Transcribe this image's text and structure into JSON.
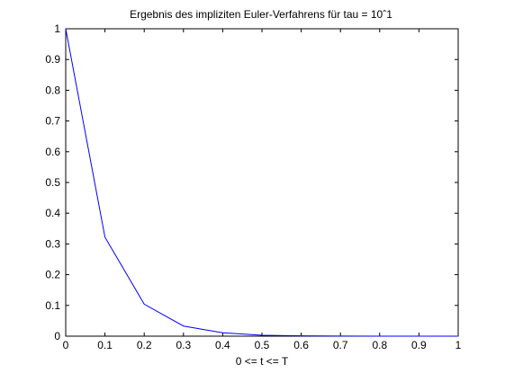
{
  "chart_data": {
    "type": "line",
    "title": "Ergebnis des impliziten Euler-Verfahrens für tau = 10ˆ1",
    "xlabel": "0 <= t <= T",
    "ylabel": "",
    "xlim": [
      0,
      1
    ],
    "ylim": [
      0,
      1
    ],
    "grid": false,
    "x_ticks": [
      "0",
      "0.1",
      "0.2",
      "0.3",
      "0.4",
      "0.5",
      "0.6",
      "0.7",
      "0.8",
      "0.9",
      "1"
    ],
    "y_ticks": [
      "0",
      "0.1",
      "0.2",
      "0.3",
      "0.4",
      "0.5",
      "0.6",
      "0.7",
      "0.8",
      "0.9",
      "1"
    ],
    "series": [
      {
        "color": "#0000ff",
        "x": [
          0,
          0.1,
          0.2,
          0.3,
          0.4,
          0.5,
          0.6,
          0.7,
          0.8,
          0.9,
          1.0
        ],
        "y": [
          1.0,
          0.322,
          0.104,
          0.033,
          0.011,
          0.003,
          0.001,
          0.0004,
          0.0001,
          4e-05,
          1e-05
        ]
      }
    ]
  }
}
